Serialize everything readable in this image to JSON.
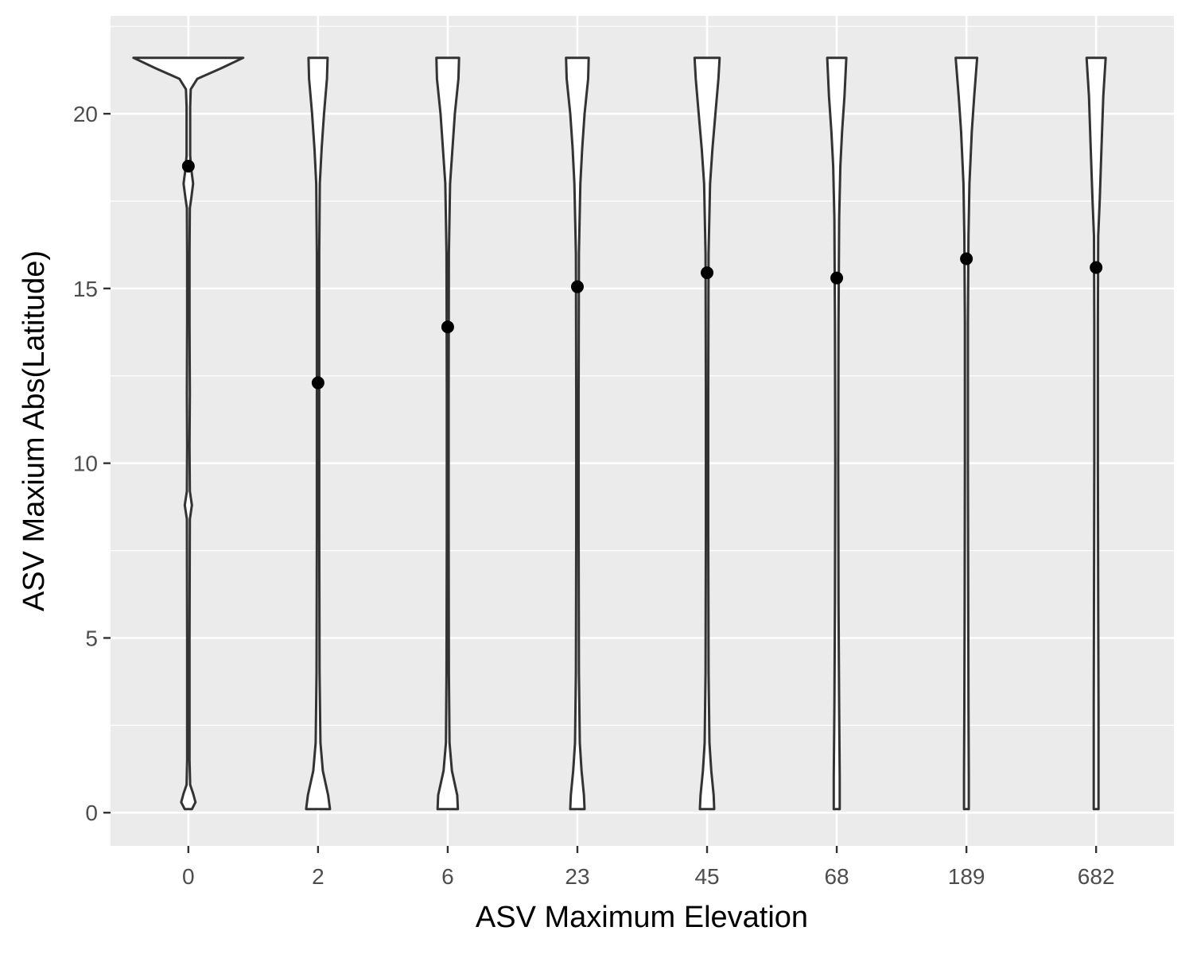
{
  "chart_data": {
    "type": "violin",
    "xlabel": "ASV Maximum Elevation",
    "ylabel": "ASV Maxium Abs(Latitude)",
    "categories": [
      "0",
      "2",
      "6",
      "23",
      "45",
      "68",
      "189",
      "682"
    ],
    "ylim": [
      -0.95,
      22.8
    ],
    "yticks": [
      0,
      5,
      10,
      15,
      20
    ],
    "grid": true,
    "panel_color": "#ebebeb",
    "violin_fill": "#ffffff",
    "violin_stroke": "#333333",
    "point_color": "#000000",
    "means": [
      18.5,
      12.3,
      13.9,
      15.05,
      15.45,
      15.3,
      15.85,
      15.6
    ],
    "violin_range": [
      0.1,
      21.6
    ],
    "density_profiles": [
      [
        [
          0.1,
          0.06
        ],
        [
          0.3,
          0.12
        ],
        [
          0.55,
          0.08
        ],
        [
          0.8,
          0.03
        ],
        [
          1.5,
          0.02
        ],
        [
          3.0,
          0.02
        ],
        [
          5.0,
          0.02
        ],
        [
          8.4,
          0.025
        ],
        [
          8.8,
          0.06
        ],
        [
          9.2,
          0.025
        ],
        [
          10.5,
          0.02
        ],
        [
          12.0,
          0.025
        ],
        [
          14.0,
          0.02
        ],
        [
          16.0,
          0.02
        ],
        [
          17.3,
          0.025
        ],
        [
          17.6,
          0.05
        ],
        [
          18.0,
          0.08
        ],
        [
          18.4,
          0.05
        ],
        [
          18.8,
          0.03
        ],
        [
          19.5,
          0.03
        ],
        [
          20.2,
          0.03
        ],
        [
          20.7,
          0.04
        ],
        [
          21.0,
          0.15
        ],
        [
          21.3,
          0.55
        ],
        [
          21.6,
          0.92
        ]
      ],
      [
        [
          0.1,
          0.2
        ],
        [
          0.5,
          0.17
        ],
        [
          1.2,
          0.08
        ],
        [
          2.0,
          0.04
        ],
        [
          4.0,
          0.025
        ],
        [
          8.0,
          0.02
        ],
        [
          12.0,
          0.02
        ],
        [
          16.0,
          0.02
        ],
        [
          18.0,
          0.03
        ],
        [
          19.0,
          0.06
        ],
        [
          20.0,
          0.1
        ],
        [
          21.0,
          0.15
        ],
        [
          21.6,
          0.16
        ]
      ],
      [
        [
          0.1,
          0.17
        ],
        [
          0.5,
          0.16
        ],
        [
          1.2,
          0.07
        ],
        [
          2.0,
          0.03
        ],
        [
          4.0,
          0.02
        ],
        [
          8.0,
          0.015
        ],
        [
          12.0,
          0.015
        ],
        [
          16.0,
          0.02
        ],
        [
          18.0,
          0.04
        ],
        [
          19.0,
          0.08
        ],
        [
          20.0,
          0.12
        ],
        [
          21.0,
          0.18
        ],
        [
          21.6,
          0.19
        ]
      ],
      [
        [
          0.1,
          0.12
        ],
        [
          0.5,
          0.11
        ],
        [
          1.2,
          0.07
        ],
        [
          2.0,
          0.04
        ],
        [
          4.0,
          0.025
        ],
        [
          8.0,
          0.02
        ],
        [
          12.0,
          0.02
        ],
        [
          16.0,
          0.025
        ],
        [
          18.0,
          0.05
        ],
        [
          19.0,
          0.08
        ],
        [
          20.0,
          0.12
        ],
        [
          21.0,
          0.18
        ],
        [
          21.6,
          0.19
        ]
      ],
      [
        [
          0.1,
          0.12
        ],
        [
          0.5,
          0.11
        ],
        [
          1.2,
          0.07
        ],
        [
          2.0,
          0.04
        ],
        [
          4.0,
          0.025
        ],
        [
          8.0,
          0.02
        ],
        [
          12.0,
          0.02
        ],
        [
          16.0,
          0.025
        ],
        [
          18.0,
          0.05
        ],
        [
          19.0,
          0.09
        ],
        [
          20.0,
          0.14
        ],
        [
          21.0,
          0.19
        ],
        [
          21.6,
          0.21
        ]
      ],
      [
        [
          0.1,
          0.05
        ],
        [
          1.0,
          0.05
        ],
        [
          3.0,
          0.04
        ],
        [
          6.0,
          0.03
        ],
        [
          10.0,
          0.025
        ],
        [
          14.0,
          0.03
        ],
        [
          17.0,
          0.04
        ],
        [
          18.5,
          0.06
        ],
        [
          19.5,
          0.09
        ],
        [
          20.5,
          0.13
        ],
        [
          21.6,
          0.16
        ]
      ],
      [
        [
          0.1,
          0.04
        ],
        [
          1.0,
          0.04
        ],
        [
          3.0,
          0.035
        ],
        [
          6.0,
          0.03
        ],
        [
          10.0,
          0.025
        ],
        [
          14.0,
          0.025
        ],
        [
          16.5,
          0.035
        ],
        [
          18.0,
          0.05
        ],
        [
          19.5,
          0.09
        ],
        [
          20.5,
          0.13
        ],
        [
          21.6,
          0.18
        ]
      ],
      [
        [
          0.1,
          0.04
        ],
        [
          1.0,
          0.04
        ],
        [
          3.0,
          0.04
        ],
        [
          6.0,
          0.035
        ],
        [
          10.0,
          0.03
        ],
        [
          14.0,
          0.03
        ],
        [
          16.5,
          0.035
        ],
        [
          17.5,
          0.06
        ],
        [
          19.0,
          0.09
        ],
        [
          20.5,
          0.12
        ],
        [
          21.6,
          0.16
        ]
      ]
    ]
  }
}
